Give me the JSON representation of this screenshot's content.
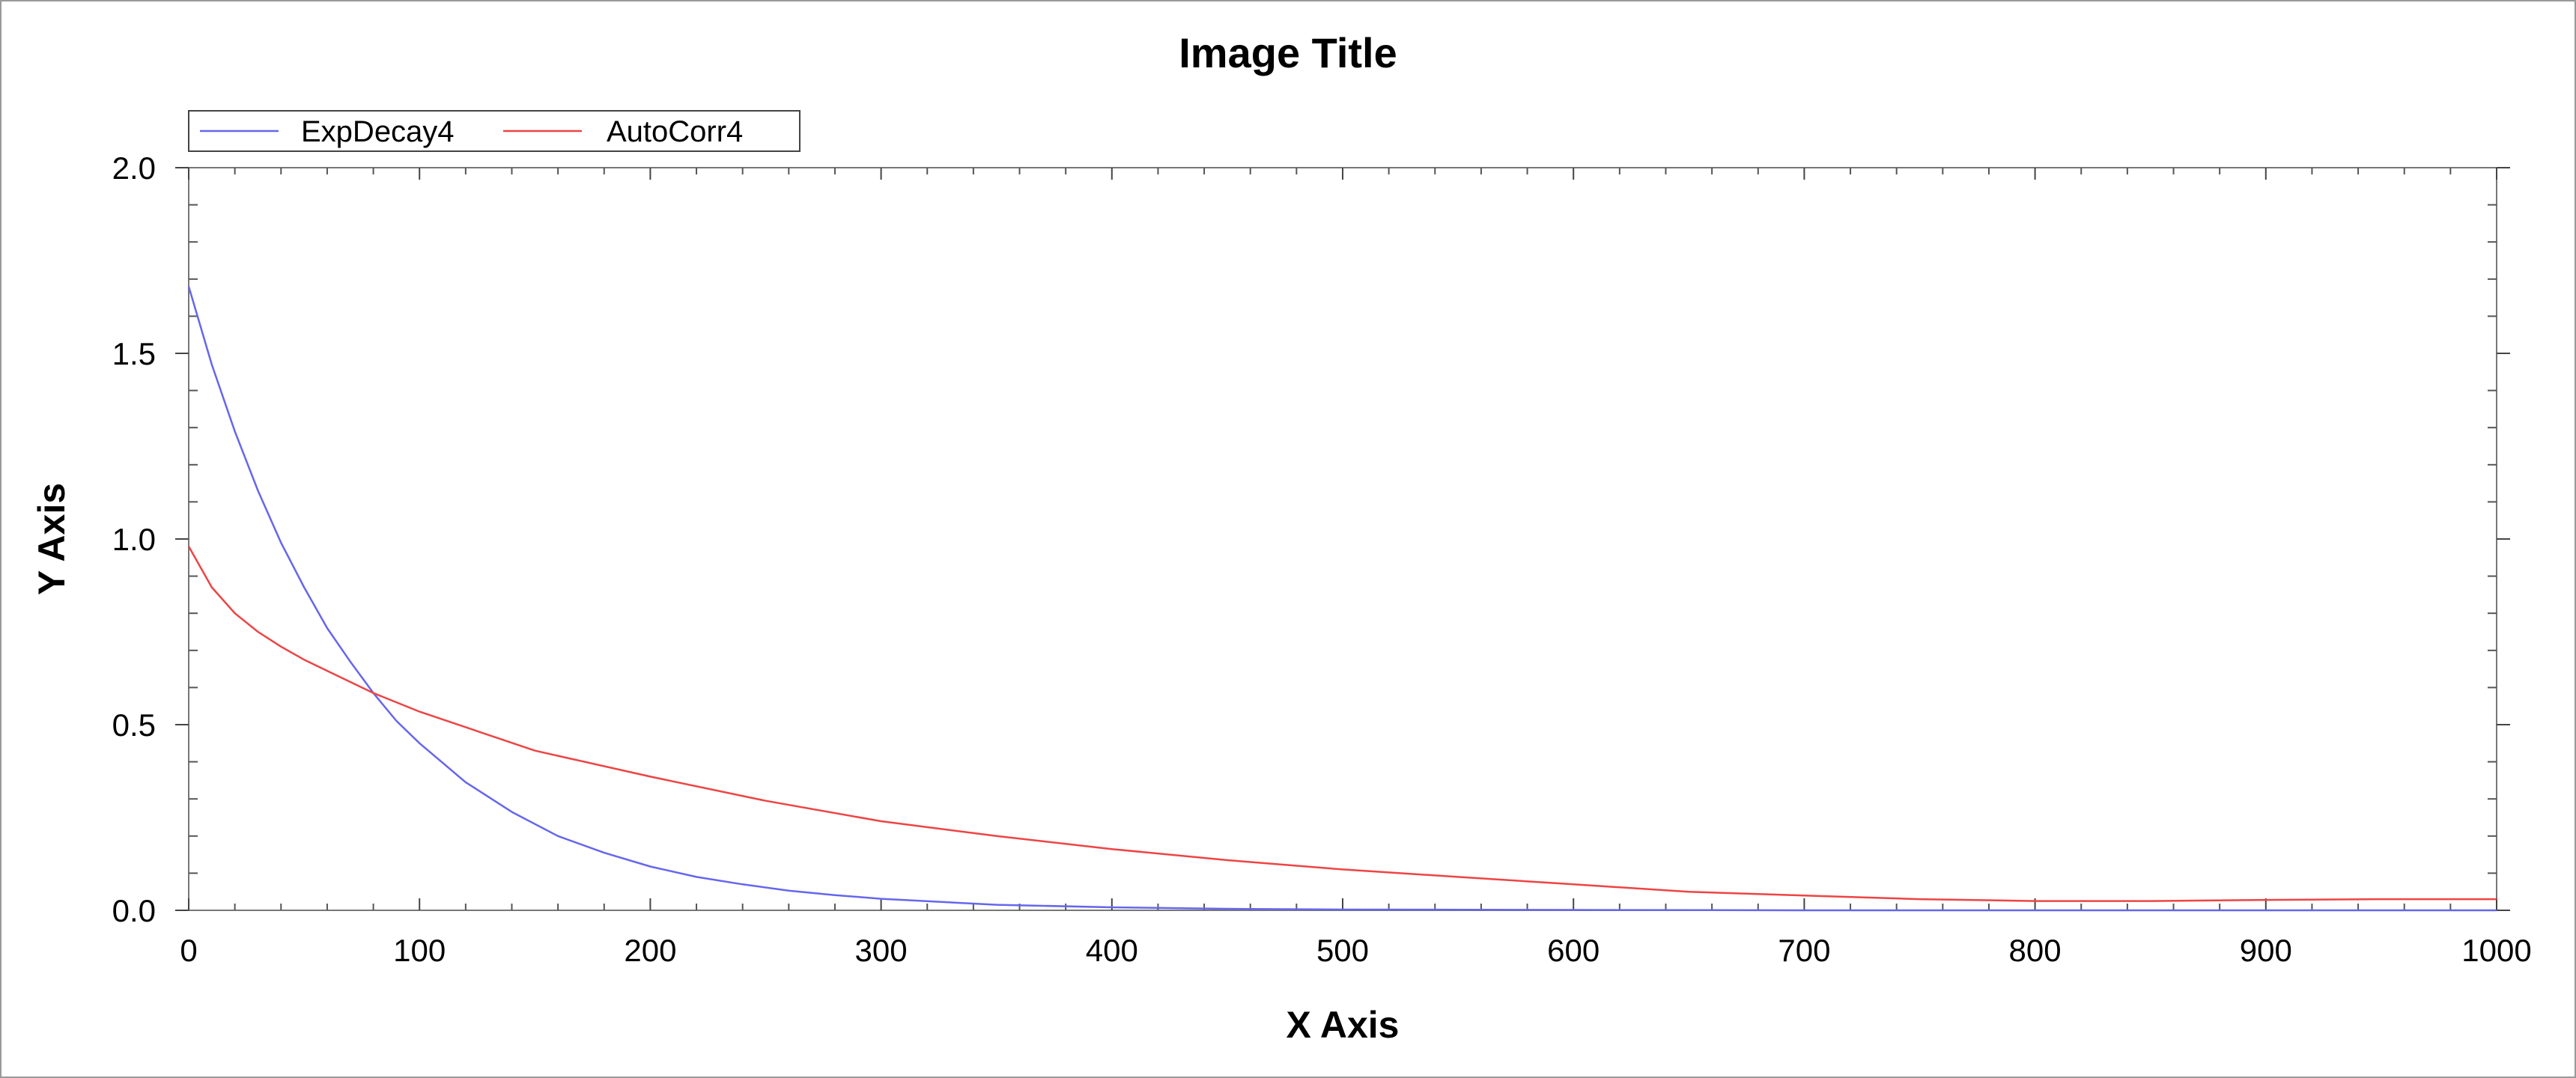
{
  "chart_data": {
    "type": "line",
    "title": "Image Title",
    "xlabel": "X Axis",
    "ylabel": "Y Axis",
    "xlim": [
      0,
      1000
    ],
    "ylim": [
      0,
      2.0
    ],
    "x_ticks": [
      "0",
      "100",
      "200",
      "300",
      "400",
      "500",
      "600",
      "700",
      "800",
      "900",
      "1000"
    ],
    "y_ticks": [
      "0.0",
      "0.5",
      "1.0",
      "1.5",
      "2.0"
    ],
    "grid": false,
    "legend_position": "top-left",
    "series": [
      {
        "name": "ExpDecay4",
        "color": "#6666ee",
        "x": [
          0,
          10,
          20,
          30,
          40,
          50,
          60,
          70,
          80,
          90,
          100,
          120,
          140,
          160,
          180,
          200,
          220,
          240,
          260,
          280,
          300,
          350,
          400,
          450,
          500,
          600,
          700,
          800,
          900,
          1000
        ],
        "y": [
          1.68,
          1.47,
          1.29,
          1.13,
          0.99,
          0.87,
          0.76,
          0.67,
          0.585,
          0.51,
          0.45,
          0.345,
          0.265,
          0.2,
          0.155,
          0.118,
          0.09,
          0.07,
          0.053,
          0.041,
          0.031,
          0.015,
          0.008,
          0.004,
          0.002,
          0.001,
          0.0,
          0.0,
          0.0,
          0.0
        ]
      },
      {
        "name": "AutoCorr4",
        "color": "#ee4444",
        "x": [
          0,
          10,
          20,
          30,
          40,
          50,
          60,
          80,
          100,
          150,
          200,
          250,
          300,
          350,
          400,
          450,
          500,
          550,
          600,
          650,
          700,
          750,
          800,
          850,
          900,
          950,
          1000
        ],
        "y": [
          0.98,
          0.87,
          0.8,
          0.75,
          0.71,
          0.675,
          0.645,
          0.585,
          0.535,
          0.43,
          0.36,
          0.295,
          0.24,
          0.2,
          0.165,
          0.135,
          0.11,
          0.09,
          0.07,
          0.05,
          0.04,
          0.03,
          0.025,
          0.025,
          0.028,
          0.03,
          0.03
        ]
      }
    ]
  }
}
